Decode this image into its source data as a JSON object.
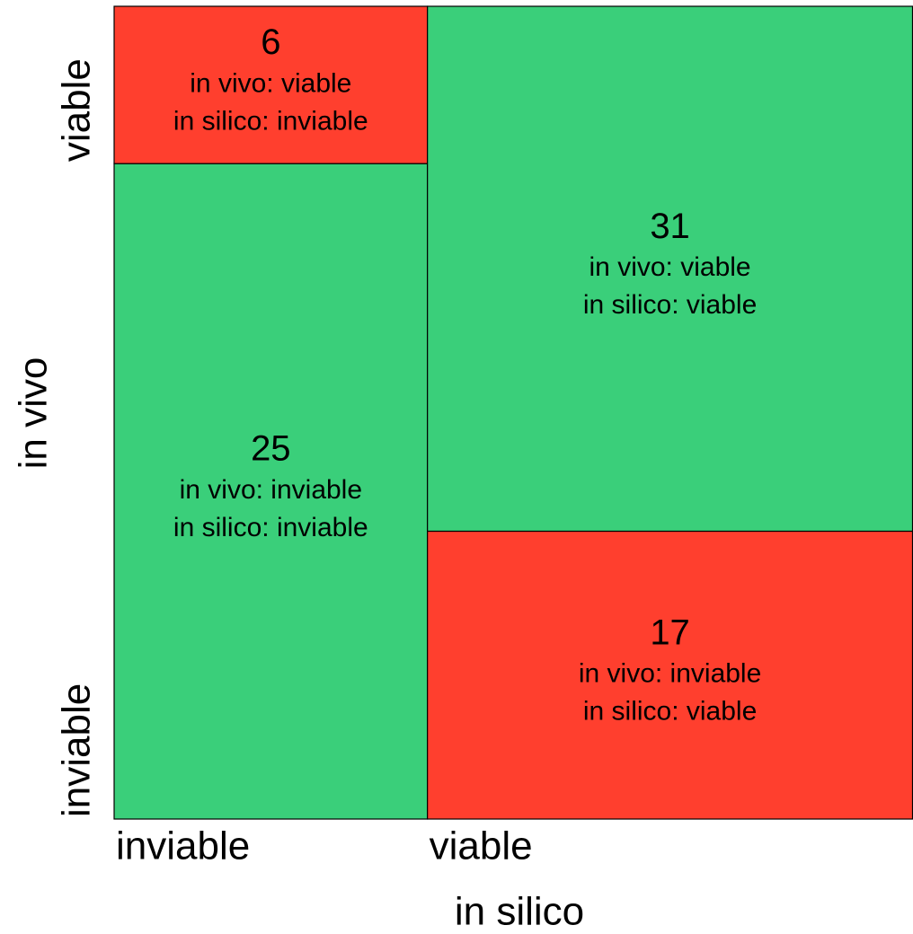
{
  "chart_data": {
    "type": "mosaic",
    "x_label": "in silico",
    "y_label": "in vivo",
    "rows": [
      "inviable",
      "viable"
    ],
    "columns": [
      {
        "label": "inviable",
        "cells": [
          {
            "value": 25,
            "text": [
              "in vivo: inviable",
              "in silico: inviable"
            ],
            "color": "#3acf7a"
          },
          {
            "value": 6,
            "text": [
              "in vivo: viable",
              "in silico: inviable"
            ],
            "color": "#ff3f2e"
          }
        ]
      },
      {
        "label": "viable",
        "cells": [
          {
            "value": 17,
            "text": [
              "in vivo: inviable",
              "in silico: viable"
            ],
            "color": "#ff3f2e"
          },
          {
            "value": 31,
            "text": [
              "in vivo: viable",
              "in silico: viable"
            ],
            "color": "#3acf7a"
          }
        ]
      }
    ]
  }
}
